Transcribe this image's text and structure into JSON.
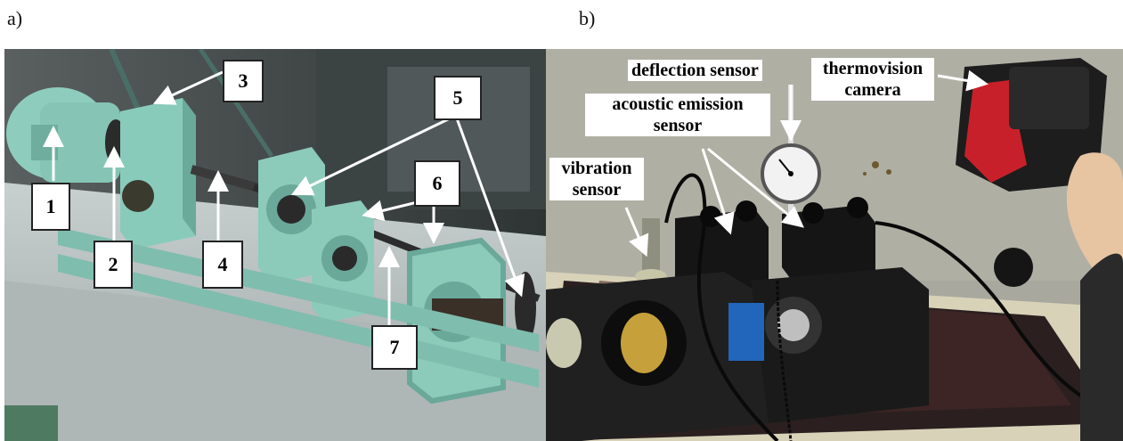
{
  "panels": {
    "a": {
      "letter": "a)",
      "labels": [
        "1",
        "2",
        "3",
        "4",
        "5",
        "6",
        "7"
      ]
    },
    "b": {
      "letter": "b)",
      "labels": {
        "deflection": "deflection sensor",
        "thermo_line1": "thermovision",
        "thermo_line2": "camera",
        "acoustic_line1": "acoustic emission",
        "acoustic_line2": "sensor",
        "vibration_line1": "vibration",
        "vibration_line2": "sensor"
      }
    }
  },
  "colors": {
    "machine_green": "#8fd0c0",
    "table_gray": "#b9c1c1",
    "background_dark": "#3a4040",
    "fixture_black": "#1a1a1a",
    "wall_gray": "#a9a9a1",
    "camera_red": "#c8202a"
  }
}
